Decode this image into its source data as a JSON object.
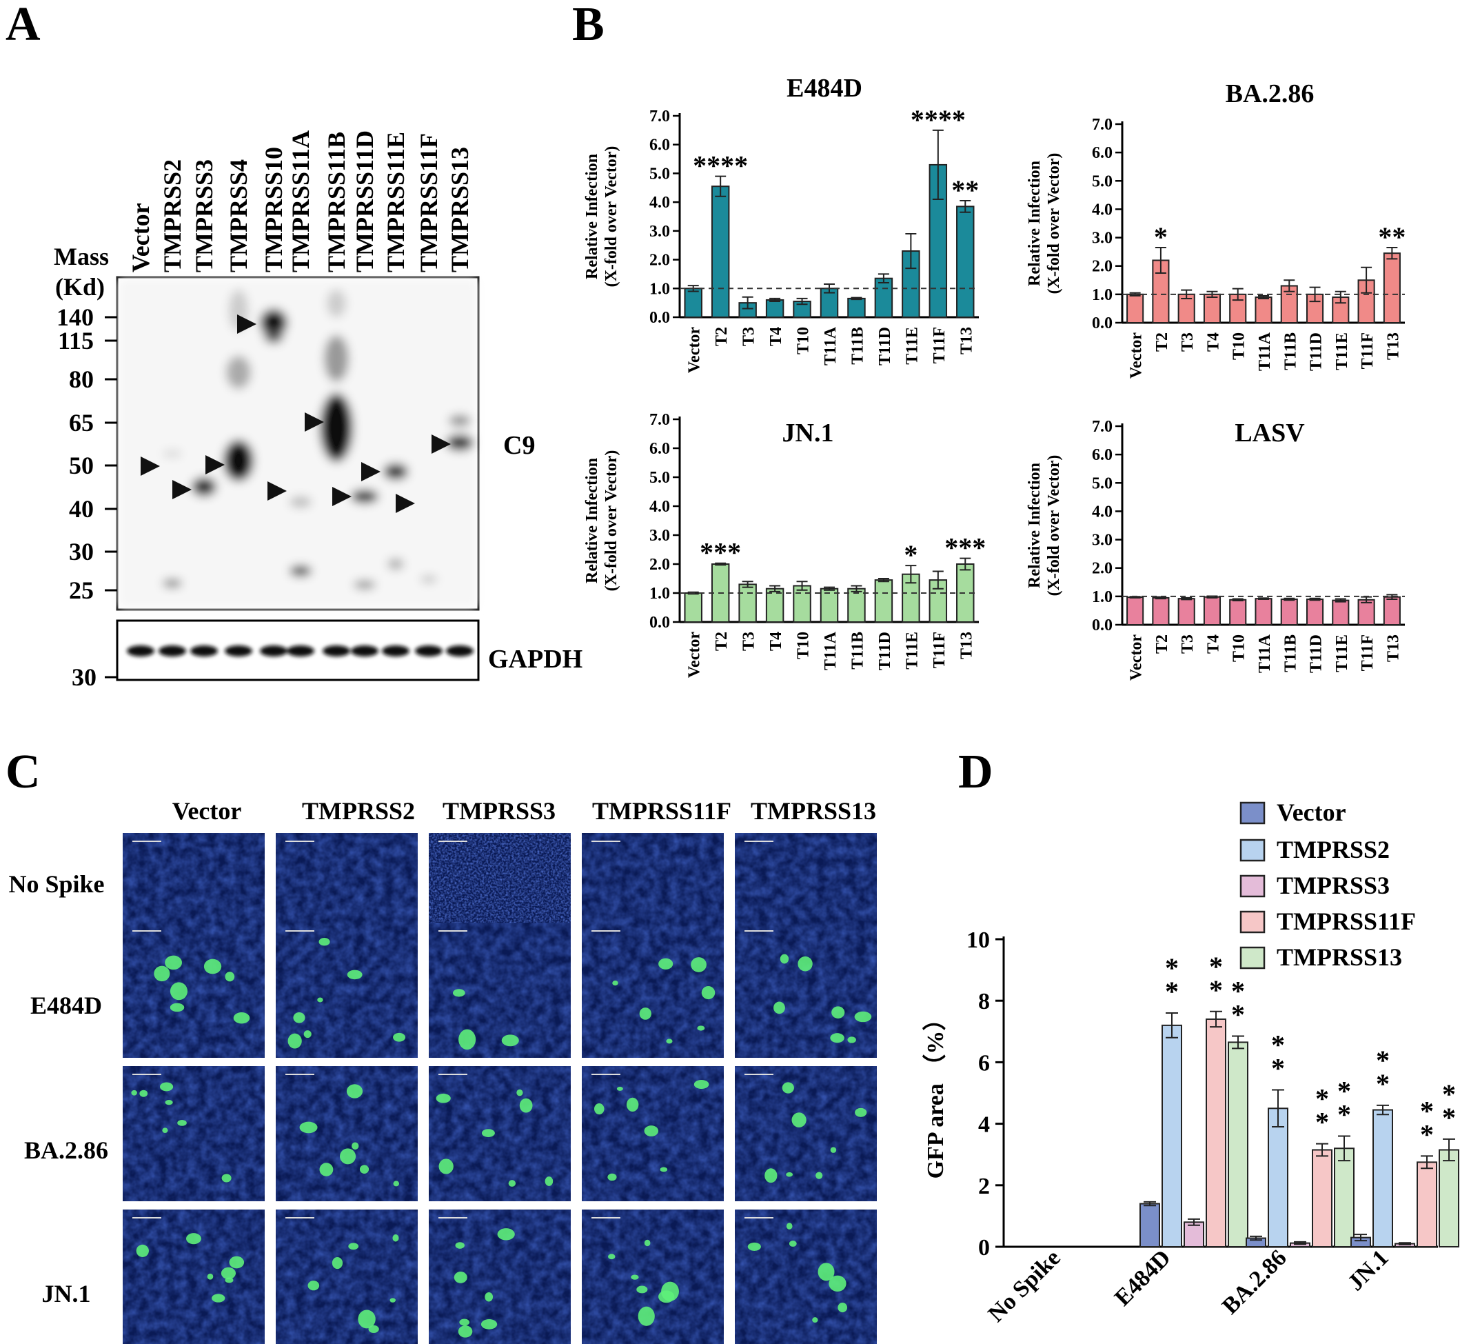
{
  "panel_labels": {
    "a": "A",
    "b": "B",
    "c": "C",
    "d": "D"
  },
  "panel_a": {
    "mass_label": "Mass",
    "unit_label": "(Kd)",
    "lanes": [
      "Vector",
      "TMPRSS2",
      "TMPRSS3",
      "TMPRSS4",
      "TMPRSS10",
      "TMPRSS11A",
      "TMPRSS11B",
      "TMPRSS11D",
      "TMPRSS11E",
      "TMPRSS11F",
      "TMPRSS13"
    ],
    "markers": [
      "140",
      "115",
      "80",
      "65",
      "50",
      "40",
      "30",
      "25"
    ],
    "gapdh_marker": "30",
    "blot_label": "C9",
    "loading_label": "GAPDH"
  },
  "panel_b": {
    "ylabel_line1": "Relative  Infection",
    "ylabel_line2": "(X-fold over Vector)",
    "yticks": [
      "0.0",
      "1.0",
      "2.0",
      "3.0",
      "4.0",
      "5.0",
      "6.0",
      "7.0"
    ],
    "categories": [
      "Vector",
      "T2",
      "T3",
      "T4",
      "T10",
      "T11A",
      "T11B",
      "T11D",
      "T11E",
      "T11F",
      "T13"
    ]
  },
  "panel_c": {
    "columns": [
      "Vector",
      "TMPRSS2",
      "TMPRSS3",
      "TMPRSS11F",
      "TMPRSS13"
    ],
    "rows": [
      "No Spike",
      "E484D",
      "BA.2.86",
      "JN.1"
    ]
  },
  "panel_d": {
    "ylabel": "GFP area （%）",
    "yticks": [
      "0",
      "2",
      "4",
      "6",
      "8",
      "10"
    ],
    "legend": [
      "Vector",
      "TMPRSS2",
      "TMPRSS3",
      "TMPRSS11F",
      "TMPRSS13"
    ]
  },
  "chart_data": [
    {
      "type": "bar",
      "title": "E484D",
      "ylabel": "Relative  Infection (X-fold over Vector)",
      "ylim": [
        0,
        7
      ],
      "reference_line": 1.0,
      "color": "#1b8a9a",
      "categories": [
        "Vector",
        "T2",
        "T3",
        "T4",
        "T10",
        "T11A",
        "T11B",
        "T11D",
        "T11E",
        "T11F",
        "T13"
      ],
      "values": [
        1.0,
        4.55,
        0.5,
        0.6,
        0.55,
        1.0,
        0.65,
        1.35,
        2.3,
        5.3,
        3.85
      ],
      "errors": [
        0.1,
        0.35,
        0.2,
        0.05,
        0.1,
        0.15,
        0.03,
        0.15,
        0.6,
        1.2,
        0.2
      ],
      "annotations": [
        "",
        "****",
        "",
        "",
        "",
        "",
        "",
        "",
        "",
        "****",
        "**"
      ]
    },
    {
      "type": "bar",
      "title": "BA.2.86",
      "ylabel": "Relative  Infection (X-fold over Vector)",
      "ylim": [
        0,
        7
      ],
      "reference_line": 1.0,
      "color": "#f08a88",
      "categories": [
        "Vector",
        "T2",
        "T3",
        "T4",
        "T10",
        "T11A",
        "T11B",
        "T11D",
        "T11E",
        "T11F",
        "T13"
      ],
      "values": [
        1.0,
        2.2,
        1.0,
        1.0,
        1.0,
        0.9,
        1.3,
        1.0,
        0.9,
        1.5,
        2.45
      ],
      "errors": [
        0.05,
        0.45,
        0.15,
        0.1,
        0.2,
        0.05,
        0.2,
        0.25,
        0.2,
        0.45,
        0.2
      ],
      "annotations": [
        "",
        "*",
        "",
        "",
        "",
        "",
        "",
        "",
        "",
        "",
        "**"
      ]
    },
    {
      "type": "bar",
      "title": "JN.1",
      "ylabel": "Relative  Infection (X-fold over Vector)",
      "ylim": [
        0,
        7
      ],
      "reference_line": 1.0,
      "color": "#a6dc9e",
      "categories": [
        "Vector",
        "T2",
        "T3",
        "T4",
        "T10",
        "T11A",
        "T11B",
        "T11D",
        "T11E",
        "T11F",
        "T13"
      ],
      "values": [
        1.0,
        2.0,
        1.3,
        1.15,
        1.25,
        1.15,
        1.15,
        1.45,
        1.65,
        1.45,
        2.0
      ],
      "errors": [
        0.03,
        0.03,
        0.1,
        0.1,
        0.15,
        0.05,
        0.1,
        0.05,
        0.3,
        0.3,
        0.2
      ],
      "annotations": [
        "",
        "***",
        "",
        "",
        "",
        "",
        "",
        "",
        "*",
        "",
        "***"
      ]
    },
    {
      "type": "bar",
      "title": "LASV",
      "ylabel": "Relative  Infection (X-fold over Vector)",
      "ylim": [
        0,
        7
      ],
      "reference_line": 1.0,
      "color": "#e8819d",
      "categories": [
        "Vector",
        "T2",
        "T3",
        "T4",
        "T10",
        "T11A",
        "T11B",
        "T11D",
        "T11E",
        "T11F",
        "T13"
      ],
      "values": [
        0.97,
        0.95,
        0.92,
        0.98,
        0.88,
        0.92,
        0.9,
        0.9,
        0.86,
        0.88,
        0.98
      ],
      "errors": [
        0.02,
        0.03,
        0.03,
        0.03,
        0.03,
        0.02,
        0.03,
        0.03,
        0.05,
        0.1,
        0.08
      ],
      "annotations": [
        "",
        "",
        "",
        "",
        "",
        "",
        "",
        "",
        "",
        "",
        ""
      ]
    },
    {
      "type": "bar",
      "title": "",
      "ylabel": "GFP area （%）",
      "ylim": [
        0,
        10
      ],
      "categories": [
        "No Spike",
        "E484D",
        "BA.2.86",
        "JN.1"
      ],
      "series": [
        {
          "name": "Vector",
          "color": "#7b8fc9",
          "values": [
            0,
            1.4,
            0.28,
            0.3
          ],
          "errors": [
            0,
            0.06,
            0.06,
            0.1
          ],
          "annotations": [
            "",
            "",
            "",
            ""
          ]
        },
        {
          "name": "TMPRSS2",
          "color": "#b8d3ef",
          "values": [
            0,
            7.2,
            4.5,
            4.45
          ],
          "errors": [
            0,
            0.4,
            0.6,
            0.15
          ],
          "annotations": [
            "",
            "**",
            "**",
            "**"
          ]
        },
        {
          "name": "TMPRSS3",
          "color": "#e4bcd9",
          "values": [
            0,
            0.8,
            0.12,
            0.1
          ],
          "errors": [
            0,
            0.1,
            0.04,
            0.03
          ],
          "annotations": [
            "",
            "",
            "",
            ""
          ]
        },
        {
          "name": "TMPRSS11F",
          "color": "#f6c7c7",
          "values": [
            0,
            7.4,
            3.15,
            2.75
          ],
          "errors": [
            0,
            0.25,
            0.2,
            0.2
          ],
          "annotations": [
            "",
            "**",
            "**",
            "**"
          ]
        },
        {
          "name": "TMPRSS13",
          "color": "#cfe8c9",
          "values": [
            0,
            6.65,
            3.2,
            3.15
          ],
          "errors": [
            0,
            0.2,
            0.4,
            0.35
          ],
          "annotations": [
            "",
            "**",
            "**",
            "**"
          ]
        }
      ]
    }
  ]
}
